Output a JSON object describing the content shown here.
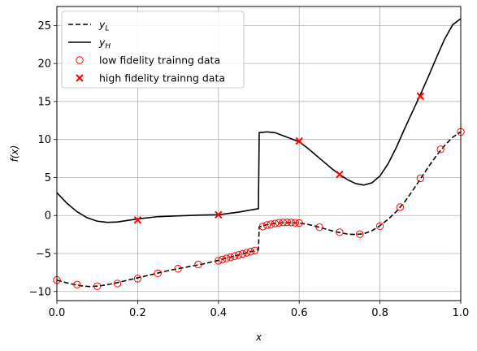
{
  "chart_data": {
    "type": "line",
    "xlabel": "x",
    "ylabel": "f(x)",
    "xlim": [
      0.0,
      1.0
    ],
    "ylim": [
      -11.2,
      27.5
    ],
    "xticks": [
      0.0,
      0.2,
      0.4,
      0.6,
      0.8,
      1.0
    ],
    "xtick_labels": [
      "0.0",
      "0.2",
      "0.4",
      "0.6",
      "0.8",
      "1.0"
    ],
    "yticks": [
      -10,
      -5,
      0,
      5,
      10,
      15,
      20,
      25
    ],
    "ytick_labels": [
      "−10",
      "−5",
      "0",
      "5",
      "10",
      "15",
      "20",
      "25"
    ],
    "grid": true,
    "legend_position": "top-left",
    "series": [
      {
        "name": "y_L",
        "legend_base": "y",
        "legend_sub": "L",
        "style": "dashed",
        "color": "#000000",
        "x": [
          0,
          0.02,
          0.04,
          0.06,
          0.08,
          0.1,
          0.12,
          0.14,
          0.16,
          0.18,
          0.2,
          0.22,
          0.24,
          0.26,
          0.28,
          0.3,
          0.32,
          0.34,
          0.36,
          0.38,
          0.4,
          0.42,
          0.44,
          0.46,
          0.48,
          0.499,
          0.501,
          0.52,
          0.54,
          0.56,
          0.58,
          0.6,
          0.62,
          0.64,
          0.66,
          0.68,
          0.7,
          0.72,
          0.74,
          0.76,
          0.78,
          0.8,
          0.82,
          0.84,
          0.86,
          0.88,
          0.9,
          0.92,
          0.94,
          0.96,
          0.98,
          1.0
        ],
        "y": [
          -8.5,
          -8.8,
          -9.05,
          -9.25,
          -9.35,
          -9.3,
          -9.15,
          -8.95,
          -8.7,
          -8.45,
          -8.2,
          -7.95,
          -7.7,
          -7.45,
          -7.2,
          -7.0,
          -6.8,
          -6.6,
          -6.4,
          -6.15,
          -5.9,
          -5.6,
          -5.35,
          -5.05,
          -4.75,
          -4.5,
          -1.5,
          -1.2,
          -1.05,
          -0.95,
          -0.95,
          -1.0,
          -1.15,
          -1.4,
          -1.7,
          -2.0,
          -2.25,
          -2.45,
          -2.5,
          -2.4,
          -2.0,
          -1.35,
          -0.5,
          0.5,
          1.7,
          3.2,
          4.8,
          6.4,
          7.9,
          9.2,
          10.3,
          11.0
        ]
      },
      {
        "name": "y_H",
        "legend_base": "y",
        "legend_sub": "H",
        "style": "solid",
        "color": "#000000",
        "x": [
          0,
          0.025,
          0.05,
          0.075,
          0.1,
          0.125,
          0.15,
          0.175,
          0.2,
          0.25,
          0.3,
          0.35,
          0.4,
          0.45,
          0.499,
          0.501,
          0.52,
          0.54,
          0.56,
          0.58,
          0.6,
          0.62,
          0.64,
          0.66,
          0.68,
          0.7,
          0.72,
          0.74,
          0.76,
          0.78,
          0.8,
          0.82,
          0.84,
          0.86,
          0.88,
          0.9,
          0.92,
          0.94,
          0.96,
          0.98,
          1.0
        ],
        "y": [
          3.0,
          1.6,
          0.5,
          -0.3,
          -0.75,
          -0.9,
          -0.85,
          -0.65,
          -0.45,
          -0.15,
          -0.05,
          0.05,
          0.1,
          0.45,
          0.9,
          10.9,
          11.0,
          10.9,
          10.5,
          10.1,
          9.7,
          8.9,
          8.0,
          7.1,
          6.2,
          5.4,
          4.7,
          4.2,
          4.0,
          4.3,
          5.2,
          6.8,
          8.9,
          11.3,
          13.6,
          15.9,
          18.3,
          20.8,
          23.2,
          25.1,
          25.9
        ]
      },
      {
        "name": "low fidelity trainng data",
        "marker": "circle-open",
        "color": "#ff0000",
        "x": [
          0,
          0.05,
          0.1,
          0.15,
          0.2,
          0.25,
          0.3,
          0.35,
          0.4,
          0.41,
          0.42,
          0.43,
          0.44,
          0.45,
          0.46,
          0.47,
          0.48,
          0.49,
          0.51,
          0.52,
          0.53,
          0.54,
          0.55,
          0.56,
          0.57,
          0.58,
          0.59,
          0.6,
          0.65,
          0.7,
          0.75,
          0.8,
          0.85,
          0.9,
          0.95,
          1.0
        ],
        "y": [
          -8.5,
          -9.1,
          -9.3,
          -8.95,
          -8.3,
          -7.6,
          -7.0,
          -6.45,
          -5.95,
          -5.8,
          -5.65,
          -5.5,
          -5.35,
          -5.2,
          -5.05,
          -4.9,
          -4.75,
          -4.6,
          -1.45,
          -1.25,
          -1.15,
          -1.05,
          -0.95,
          -0.9,
          -0.9,
          -0.92,
          -0.95,
          -1.0,
          -1.55,
          -2.2,
          -2.45,
          -1.4,
          1.1,
          4.9,
          8.7,
          11.0
        ]
      },
      {
        "name": "high fidelity trainng data",
        "marker": "x",
        "color": "#ff0000",
        "x": [
          0.2,
          0.4,
          0.6,
          0.7,
          0.9
        ],
        "y": [
          -0.6,
          0.1,
          9.8,
          5.4,
          15.7
        ]
      }
    ]
  }
}
